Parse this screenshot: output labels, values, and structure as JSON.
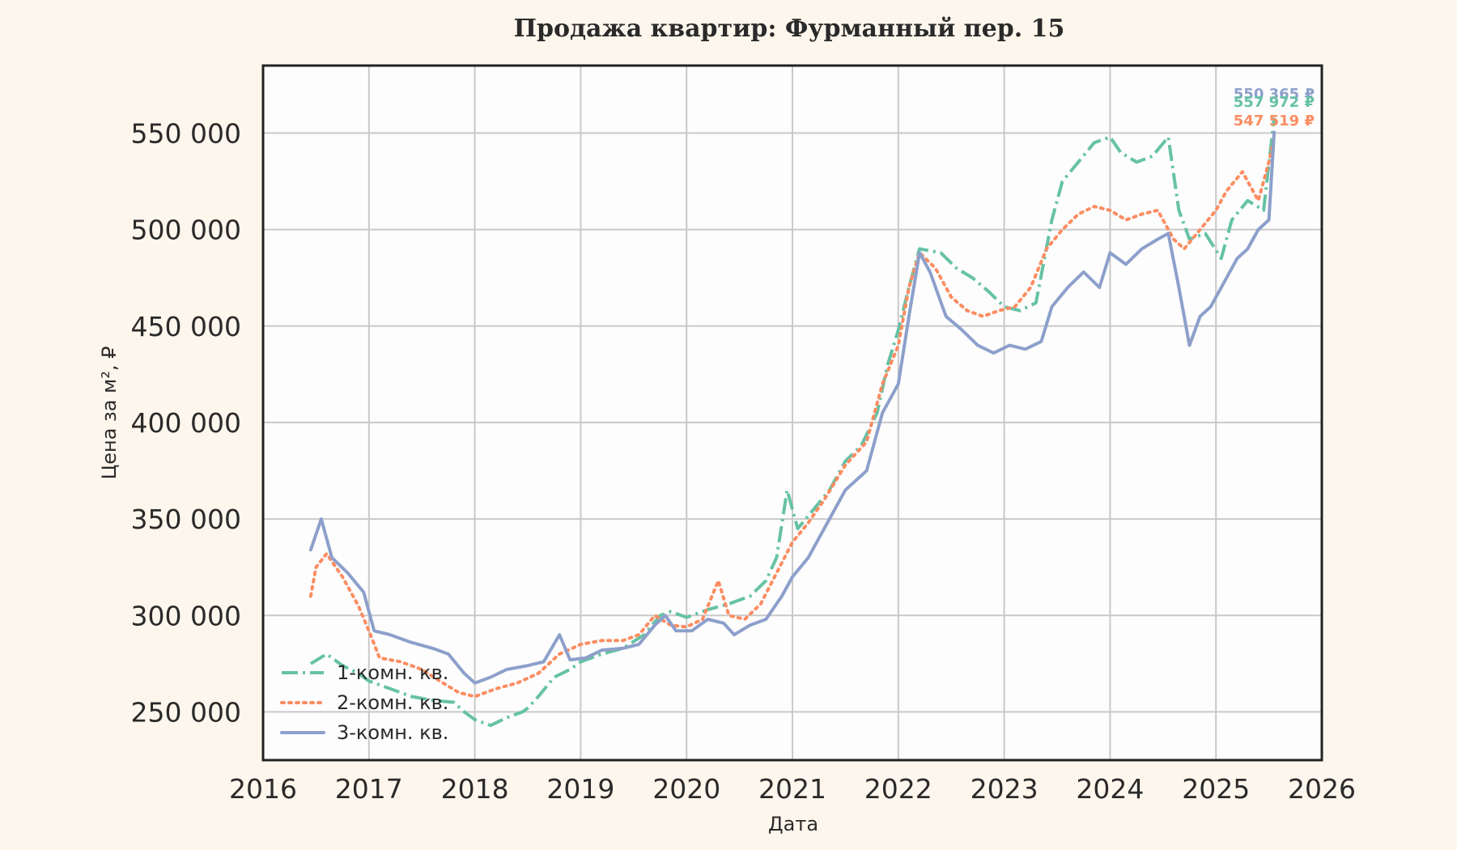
{
  "chart_data": {
    "type": "line",
    "title": "Продажа квартир: Фурманный пер. 15",
    "xlabel": "Дата",
    "ylabel": "Цена за м², ₽",
    "xlim": [
      2016,
      2026
    ],
    "ylim": [
      225000,
      585000
    ],
    "x_ticks": [
      "2016",
      "2017",
      "2018",
      "2019",
      "2020",
      "2021",
      "2022",
      "2023",
      "2024",
      "2025",
      "2026"
    ],
    "y_ticks": [
      250000,
      300000,
      350000,
      400000,
      450000,
      500000,
      550000
    ],
    "y_tick_labels": [
      "250 000",
      "300 000",
      "350 000",
      "400 000",
      "450 000",
      "500 000",
      "550 000"
    ],
    "grid": true,
    "legend_position": "lower-left",
    "series": [
      {
        "name": "1-комн. кв.",
        "color": "#66c2a5",
        "style": "dashdot",
        "end_label": "557 972 ₽",
        "points": [
          [
            2016.45,
            275000
          ],
          [
            2016.6,
            280000
          ],
          [
            2016.75,
            274000
          ],
          [
            2016.9,
            270000
          ],
          [
            2017.0,
            266000
          ],
          [
            2017.2,
            262000
          ],
          [
            2017.4,
            258000
          ],
          [
            2017.6,
            256000
          ],
          [
            2017.8,
            255000
          ],
          [
            2017.9,
            250000
          ],
          [
            2018.0,
            246000
          ],
          [
            2018.15,
            243000
          ],
          [
            2018.3,
            247000
          ],
          [
            2018.45,
            250000
          ],
          [
            2018.5,
            252000
          ],
          [
            2018.6,
            258000
          ],
          [
            2018.75,
            268000
          ],
          [
            2018.9,
            272000
          ],
          [
            2019.0,
            276000
          ],
          [
            2019.2,
            280000
          ],
          [
            2019.4,
            283000
          ],
          [
            2019.6,
            290000
          ],
          [
            2019.75,
            300000
          ],
          [
            2019.85,
            302000
          ],
          [
            2020.0,
            299000
          ],
          [
            2020.2,
            303000
          ],
          [
            2020.4,
            306000
          ],
          [
            2020.6,
            310000
          ],
          [
            2020.75,
            318000
          ],
          [
            2020.85,
            330000
          ],
          [
            2020.95,
            365000
          ],
          [
            2021.05,
            345000
          ],
          [
            2021.2,
            355000
          ],
          [
            2021.35,
            365000
          ],
          [
            2021.5,
            380000
          ],
          [
            2021.65,
            388000
          ],
          [
            2021.8,
            405000
          ],
          [
            2021.9,
            430000
          ],
          [
            2022.0,
            448000
          ],
          [
            2022.1,
            470000
          ],
          [
            2022.2,
            490000
          ],
          [
            2022.4,
            488000
          ],
          [
            2022.55,
            480000
          ],
          [
            2022.7,
            475000
          ],
          [
            2022.85,
            468000
          ],
          [
            2023.0,
            460000
          ],
          [
            2023.15,
            458000
          ],
          [
            2023.3,
            462000
          ],
          [
            2023.45,
            505000
          ],
          [
            2023.55,
            525000
          ],
          [
            2023.7,
            535000
          ],
          [
            2023.85,
            545000
          ],
          [
            2024.0,
            548000
          ],
          [
            2024.1,
            540000
          ],
          [
            2024.25,
            535000
          ],
          [
            2024.4,
            538000
          ],
          [
            2024.55,
            548000
          ],
          [
            2024.65,
            510000
          ],
          [
            2024.75,
            495000
          ],
          [
            2024.9,
            498000
          ],
          [
            2025.05,
            485000
          ],
          [
            2025.15,
            505000
          ],
          [
            2025.3,
            515000
          ],
          [
            2025.45,
            510000
          ],
          [
            2025.55,
            557972
          ]
        ]
      },
      {
        "name": "2-комн. кв.",
        "color": "#fc8d62",
        "style": "dotted",
        "end_label": "547 519 ₽",
        "points": [
          [
            2016.45,
            310000
          ],
          [
            2016.5,
            325000
          ],
          [
            2016.6,
            332000
          ],
          [
            2016.75,
            320000
          ],
          [
            2016.9,
            305000
          ],
          [
            2017.0,
            292000
          ],
          [
            2017.1,
            278000
          ],
          [
            2017.3,
            276000
          ],
          [
            2017.5,
            272000
          ],
          [
            2017.7,
            265000
          ],
          [
            2017.85,
            260000
          ],
          [
            2018.0,
            258000
          ],
          [
            2018.2,
            262000
          ],
          [
            2018.4,
            265000
          ],
          [
            2018.6,
            270000
          ],
          [
            2018.8,
            280000
          ],
          [
            2019.0,
            285000
          ],
          [
            2019.2,
            287000
          ],
          [
            2019.4,
            287000
          ],
          [
            2019.55,
            290000
          ],
          [
            2019.7,
            300000
          ],
          [
            2019.85,
            295000
          ],
          [
            2020.0,
            294000
          ],
          [
            2020.15,
            298000
          ],
          [
            2020.3,
            318000
          ],
          [
            2020.4,
            300000
          ],
          [
            2020.55,
            298000
          ],
          [
            2020.7,
            306000
          ],
          [
            2020.85,
            322000
          ],
          [
            2021.0,
            338000
          ],
          [
            2021.15,
            348000
          ],
          [
            2021.3,
            360000
          ],
          [
            2021.5,
            378000
          ],
          [
            2021.7,
            390000
          ],
          [
            2021.85,
            420000
          ],
          [
            2022.0,
            440000
          ],
          [
            2022.1,
            470000
          ],
          [
            2022.2,
            488000
          ],
          [
            2022.35,
            480000
          ],
          [
            2022.5,
            465000
          ],
          [
            2022.65,
            458000
          ],
          [
            2022.8,
            455000
          ],
          [
            2022.95,
            458000
          ],
          [
            2023.1,
            460000
          ],
          [
            2023.25,
            470000
          ],
          [
            2023.4,
            490000
          ],
          [
            2023.55,
            500000
          ],
          [
            2023.7,
            508000
          ],
          [
            2023.85,
            512000
          ],
          [
            2024.0,
            510000
          ],
          [
            2024.15,
            505000
          ],
          [
            2024.3,
            508000
          ],
          [
            2024.45,
            510000
          ],
          [
            2024.6,
            495000
          ],
          [
            2024.7,
            490000
          ],
          [
            2024.85,
            500000
          ],
          [
            2025.0,
            510000
          ],
          [
            2025.1,
            520000
          ],
          [
            2025.25,
            530000
          ],
          [
            2025.4,
            515000
          ],
          [
            2025.5,
            535000
          ],
          [
            2025.55,
            547519
          ]
        ]
      },
      {
        "name": "3-комн. кв.",
        "color": "#8da0cb",
        "style": "solid",
        "end_label": "550 365 ₽",
        "points": [
          [
            2016.45,
            334000
          ],
          [
            2016.55,
            350000
          ],
          [
            2016.65,
            330000
          ],
          [
            2016.8,
            322000
          ],
          [
            2016.95,
            312000
          ],
          [
            2017.05,
            292000
          ],
          [
            2017.2,
            290000
          ],
          [
            2017.4,
            286000
          ],
          [
            2017.6,
            283000
          ],
          [
            2017.75,
            280000
          ],
          [
            2017.9,
            270000
          ],
          [
            2018.0,
            265000
          ],
          [
            2018.15,
            268000
          ],
          [
            2018.3,
            272000
          ],
          [
            2018.5,
            274000
          ],
          [
            2018.65,
            276000
          ],
          [
            2018.8,
            290000
          ],
          [
            2018.9,
            277000
          ],
          [
            2019.05,
            278000
          ],
          [
            2019.2,
            282000
          ],
          [
            2019.4,
            283000
          ],
          [
            2019.55,
            285000
          ],
          [
            2019.7,
            295000
          ],
          [
            2019.8,
            300000
          ],
          [
            2019.9,
            292000
          ],
          [
            2020.05,
            292000
          ],
          [
            2020.2,
            298000
          ],
          [
            2020.35,
            296000
          ],
          [
            2020.45,
            290000
          ],
          [
            2020.6,
            295000
          ],
          [
            2020.75,
            298000
          ],
          [
            2020.9,
            310000
          ],
          [
            2021.0,
            320000
          ],
          [
            2021.15,
            330000
          ],
          [
            2021.3,
            345000
          ],
          [
            2021.5,
            365000
          ],
          [
            2021.7,
            375000
          ],
          [
            2021.85,
            405000
          ],
          [
            2022.0,
            420000
          ],
          [
            2022.1,
            455000
          ],
          [
            2022.2,
            488000
          ],
          [
            2022.3,
            478000
          ],
          [
            2022.45,
            455000
          ],
          [
            2022.6,
            448000
          ],
          [
            2022.75,
            440000
          ],
          [
            2022.9,
            436000
          ],
          [
            2023.05,
            440000
          ],
          [
            2023.2,
            438000
          ],
          [
            2023.35,
            442000
          ],
          [
            2023.45,
            460000
          ],
          [
            2023.6,
            470000
          ],
          [
            2023.75,
            478000
          ],
          [
            2023.9,
            470000
          ],
          [
            2024.0,
            488000
          ],
          [
            2024.15,
            482000
          ],
          [
            2024.3,
            490000
          ],
          [
            2024.45,
            495000
          ],
          [
            2024.55,
            498000
          ],
          [
            2024.65,
            470000
          ],
          [
            2024.75,
            440000
          ],
          [
            2024.85,
            455000
          ],
          [
            2024.95,
            460000
          ],
          [
            2025.1,
            475000
          ],
          [
            2025.2,
            485000
          ],
          [
            2025.3,
            490000
          ],
          [
            2025.4,
            500000
          ],
          [
            2025.5,
            505000
          ],
          [
            2025.55,
            550365
          ]
        ]
      }
    ]
  }
}
